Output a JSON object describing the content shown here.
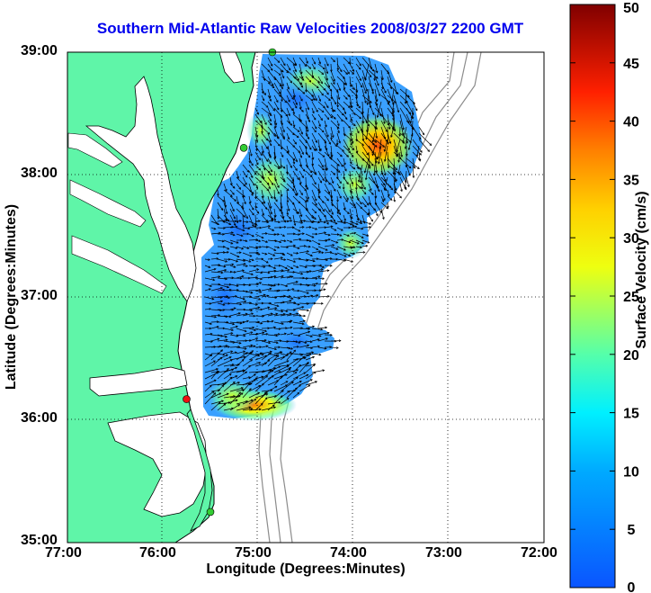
{
  "title": "Southern Mid-Atlantic Raw Velocities 2008/03/27 2200 GMT",
  "x_axis": {
    "label": "Longitude (Degrees:Minutes)",
    "ticks": [
      "77:00",
      "76:00",
      "75:00",
      "74:00",
      "73:00",
      "72:00"
    ]
  },
  "y_axis": {
    "label": "Latitude (Degrees:Minutes)",
    "ticks": [
      "39:00",
      "38:00",
      "37:00",
      "36:00",
      "35:00"
    ]
  },
  "colorbar": {
    "label": "Surface Velocity (cm/s)",
    "ticks": [
      "50",
      "45",
      "40",
      "35",
      "30",
      "25",
      "20",
      "15",
      "10",
      "5",
      "0"
    ],
    "min": 0,
    "max": 50
  },
  "colors": {
    "land": "#5ff5a8",
    "title": "#0000ee",
    "coastline": "#000000",
    "bathymetry": "#8c8c8c",
    "station_active": "#33cc33",
    "station_highlight": "#ee1111"
  },
  "chart_data": {
    "type": "heatmap",
    "map_extent": {
      "lon": [
        -77,
        -72
      ],
      "lat": [
        35,
        39
      ]
    },
    "grid": "dotted",
    "vector_field": true,
    "stations": [
      {
        "lon": -74.85,
        "lat": 39.0,
        "status": "active"
      },
      {
        "lon": -75.15,
        "lat": 38.22,
        "status": "active"
      },
      {
        "lon": -75.75,
        "lat": 36.17,
        "status": "highlight"
      },
      {
        "lon": -75.5,
        "lat": 35.25,
        "status": "active"
      }
    ]
  }
}
